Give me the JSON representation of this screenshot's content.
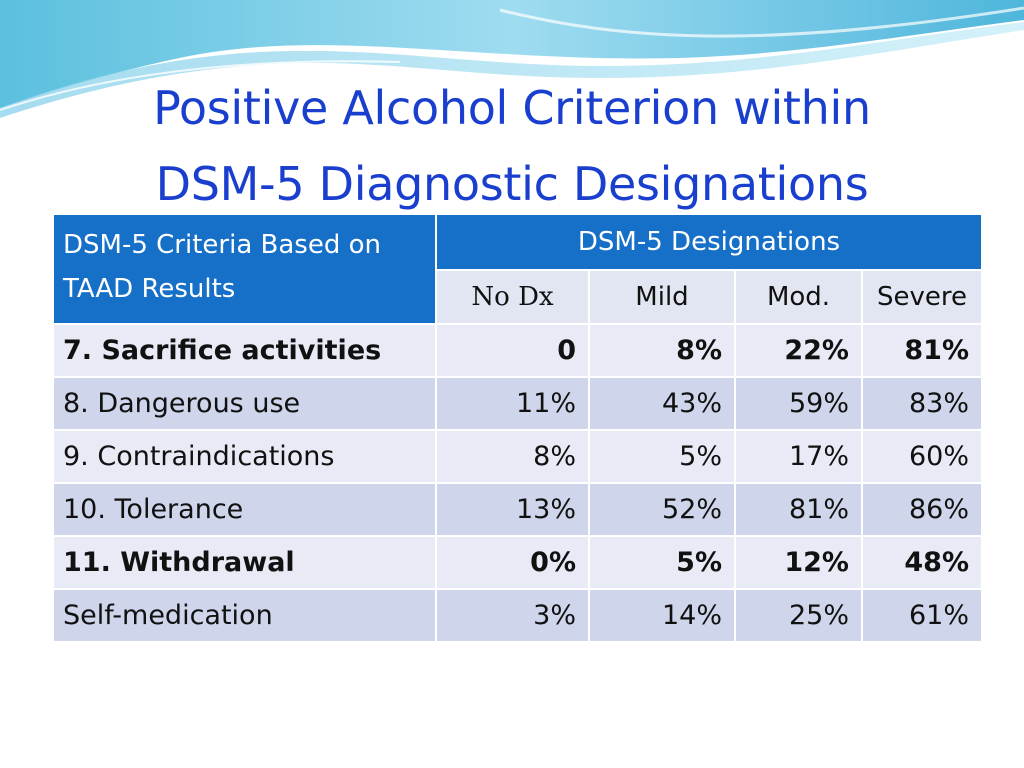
{
  "title": {
    "line1": "Positive Alcohol Criterion within",
    "line2": "DSM-5 Diagnostic Designations"
  },
  "colors": {
    "title": "#1a3fcf",
    "header_bg": "#1670c8",
    "row_light": "#e8ebf5",
    "row_dark": "#cfd5ea"
  },
  "table": {
    "criteria_header": "DSM-5 Criteria Based on TAAD Results",
    "group_header": "DSM-5 Designations",
    "columns": [
      "No Dx",
      "Mild",
      "Mod.",
      "Severe"
    ],
    "rows": [
      {
        "criterion": "7. Sacrifice activities",
        "values": [
          "0",
          "8%",
          "22%",
          "81%"
        ],
        "bold": true
      },
      {
        "criterion": "8. Dangerous use",
        "values": [
          "11%",
          "43%",
          "59%",
          "83%"
        ],
        "bold": false
      },
      {
        "criterion": "9. Contraindications",
        "values": [
          "8%",
          "5%",
          "17%",
          "60%"
        ],
        "bold": false
      },
      {
        "criterion": "10. Tolerance",
        "values": [
          "13%",
          "52%",
          "81%",
          "86%"
        ],
        "bold": false
      },
      {
        "criterion": "11. Withdrawal",
        "values": [
          "0%",
          "5%",
          "12%",
          "48%"
        ],
        "bold": true
      },
      {
        "criterion": "Self-medication",
        "values": [
          "3%",
          "14%",
          "25%",
          "61%"
        ],
        "bold": false
      }
    ]
  }
}
